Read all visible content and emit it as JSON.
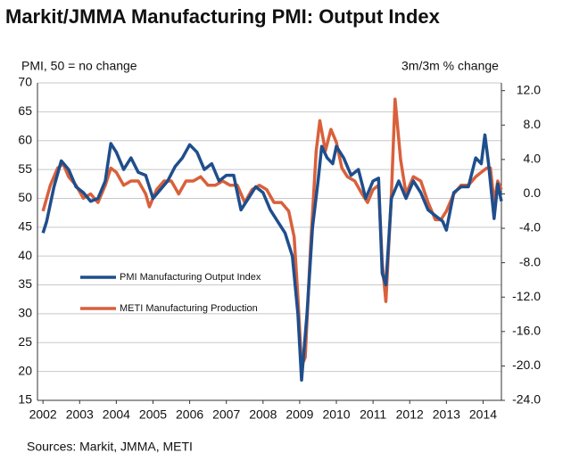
{
  "chart_data": {
    "type": "line",
    "title": "Markit/JMMA Manufacturing PMI: Output Index",
    "y_label": "PMI, 50 = no change",
    "y2_label": "3m/3m % change",
    "source": "Sources: Markit, JMMA, METI",
    "xlim": [
      2001.85,
      2014.5
    ],
    "xticks": [
      2002,
      2003,
      2004,
      2005,
      2006,
      2007,
      2008,
      2009,
      2010,
      2011,
      2012,
      2013,
      2014
    ],
    "ylim": [
      15,
      70
    ],
    "yticks": [
      15,
      20,
      25,
      30,
      35,
      40,
      45,
      50,
      55,
      60,
      65,
      70
    ],
    "y2lim": [
      -24,
      12.9
    ],
    "y2ticks": [
      {
        "value": -24,
        "label": "-24.0"
      },
      {
        "value": -20,
        "label": "-20.0"
      },
      {
        "value": -16,
        "label": "-16.0"
      },
      {
        "value": -12,
        "label": "-12.0"
      },
      {
        "value": -8,
        "label": "-8.0"
      },
      {
        "value": -4,
        "label": "-4.0"
      },
      {
        "value": 0,
        "label": "0.0"
      },
      {
        "value": 4,
        "label": "4.0"
      },
      {
        "value": 8,
        "label": "8.0"
      },
      {
        "value": 12,
        "label": "12.0"
      }
    ],
    "grid": true,
    "legend": "left",
    "series": [
      {
        "name": "PMI Manufacturing Output Index",
        "color": "#1f4e8c",
        "axis": "y",
        "x": [
          2002.0,
          2002.1,
          2002.3,
          2002.5,
          2002.7,
          2002.9,
          2003.1,
          2003.3,
          2003.5,
          2003.7,
          2003.85,
          2004.0,
          2004.2,
          2004.4,
          2004.6,
          2004.8,
          2005.0,
          2005.2,
          2005.4,
          2005.6,
          2005.8,
          2006.0,
          2006.2,
          2006.4,
          2006.6,
          2006.8,
          2007.0,
          2007.2,
          2007.4,
          2007.6,
          2007.8,
          2008.0,
          2008.2,
          2008.4,
          2008.6,
          2008.8,
          2008.95,
          2009.05,
          2009.2,
          2009.35,
          2009.5,
          2009.6,
          2009.75,
          2009.9,
          2010.0,
          2010.2,
          2010.4,
          2010.6,
          2010.8,
          2011.0,
          2011.15,
          2011.25,
          2011.35,
          2011.5,
          2011.7,
          2011.9,
          2012.1,
          2012.3,
          2012.5,
          2012.7,
          2012.9,
          2013.0,
          2013.2,
          2013.4,
          2013.6,
          2013.8,
          2013.95,
          2014.05,
          2014.15,
          2014.3,
          2014.4,
          2014.5
        ],
        "values": [
          44,
          46,
          52,
          56.5,
          55,
          52,
          51,
          49.5,
          50,
          53,
          59.5,
          58,
          55,
          57,
          54.5,
          54,
          50,
          51.5,
          53,
          55.5,
          57,
          59.3,
          58,
          55,
          56,
          53,
          54,
          54,
          48,
          50,
          52,
          51,
          48,
          46,
          44,
          40,
          30,
          18.5,
          30,
          45,
          53,
          59,
          57,
          56,
          59,
          57,
          54,
          55,
          50,
          53,
          53.5,
          37,
          35,
          50,
          53,
          50,
          53,
          51,
          48,
          47,
          46,
          44.5,
          51,
          52,
          52,
          57,
          56,
          61,
          56,
          46.5,
          52.5,
          49.5
        ]
      },
      {
        "name": "METI Manufacturing Production",
        "color": "#d9603b",
        "axis": "y2",
        "x": [
          2002.0,
          2002.2,
          2002.4,
          2002.55,
          2002.7,
          2002.9,
          2003.1,
          2003.3,
          2003.5,
          2003.7,
          2003.85,
          2004.0,
          2004.2,
          2004.4,
          2004.6,
          2004.8,
          2004.9,
          2005.1,
          2005.3,
          2005.5,
          2005.7,
          2005.9,
          2006.1,
          2006.3,
          2006.5,
          2006.7,
          2006.9,
          2007.1,
          2007.3,
          2007.5,
          2007.7,
          2007.9,
          2008.1,
          2008.3,
          2008.5,
          2008.7,
          2008.85,
          2008.95,
          2009.05,
          2009.15,
          2009.3,
          2009.45,
          2009.55,
          2009.7,
          2009.85,
          2010.0,
          2010.15,
          2010.3,
          2010.5,
          2010.7,
          2010.85,
          2011.0,
          2011.15,
          2011.25,
          2011.35,
          2011.5,
          2011.6,
          2011.75,
          2011.9,
          2012.1,
          2012.3,
          2012.5,
          2012.7,
          2012.85,
          2013.0,
          2013.2,
          2013.4,
          2013.6,
          2013.8,
          2013.95,
          2014.1,
          2014.2,
          2014.3,
          2014.4,
          2014.5
        ],
        "values": [
          -2,
          1,
          3,
          3.5,
          2,
          1,
          -0.5,
          0,
          -1,
          1,
          3,
          2.5,
          1,
          1.5,
          1.5,
          0,
          -1.5,
          0.5,
          1.5,
          1.5,
          0,
          1.5,
          1.5,
          2,
          1,
          1,
          1.5,
          1,
          1,
          -1,
          0.5,
          1,
          0.5,
          -1,
          -1,
          -2,
          -5,
          -12,
          -20,
          -19,
          -6,
          5,
          8.5,
          5,
          7.5,
          6,
          3,
          2,
          1.5,
          0,
          -1,
          0.5,
          1,
          -8,
          -12.5,
          0,
          11,
          4,
          0,
          2,
          1.5,
          -1,
          -3,
          -3,
          -2,
          0,
          1,
          1,
          2,
          2.5,
          3,
          3,
          -1,
          1.5,
          0.5
        ]
      }
    ]
  }
}
